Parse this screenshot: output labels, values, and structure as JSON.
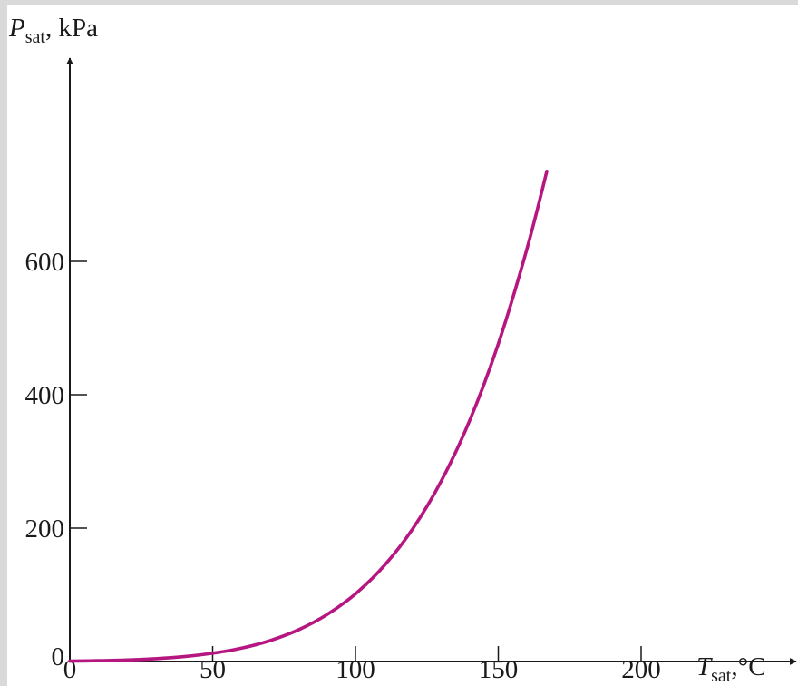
{
  "chart_data": {
    "type": "line",
    "title": "",
    "ylabel": {
      "symbol": "P",
      "subscript": "sat",
      "unit": ", kPa"
    },
    "xlabel": {
      "symbol": "T",
      "subscript": "sat",
      "unit": ",°C"
    },
    "xlim": [
      0,
      250
    ],
    "ylim": [
      0,
      750
    ],
    "x_ticks": [
      0,
      50,
      100,
      150,
      200
    ],
    "y_ticks": [
      0,
      200,
      400,
      600
    ],
    "grid": false,
    "series": [
      {
        "color": "#b5167f",
        "x": [
          0,
          10,
          20,
          30,
          40,
          50,
          60,
          70,
          80,
          90,
          100,
          110,
          120,
          130,
          140,
          150,
          160,
          167
        ],
        "y": [
          0.6,
          1.2,
          2.3,
          4.2,
          7.4,
          12.4,
          19.9,
          31.2,
          47.4,
          70.2,
          101.4,
          143.4,
          198.7,
          270.3,
          361.5,
          476.2,
          618.2,
          735
        ]
      }
    ]
  }
}
